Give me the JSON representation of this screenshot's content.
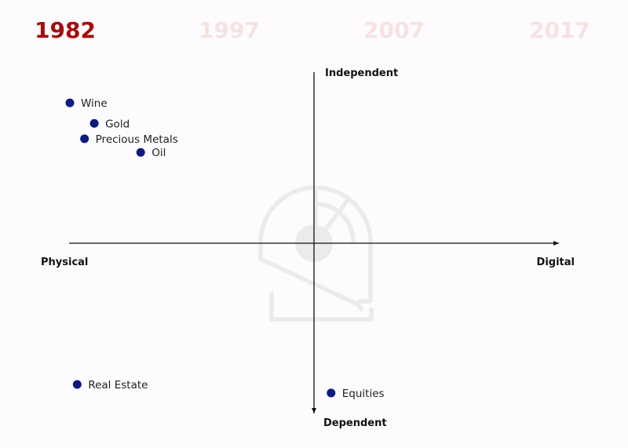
{
  "timeline": {
    "years": [
      "1982",
      "1997",
      "2007",
      "2017"
    ],
    "selected": "1982",
    "colors": {
      "active": "#a50d0d",
      "inactive": "#f6e2e2"
    }
  },
  "chart_data": {
    "type": "scatter",
    "title": "",
    "xaxis": {
      "negative_label": "Physical",
      "positive_label": "Digital",
      "range": [
        -100,
        100
      ]
    },
    "yaxis": {
      "positive_label": "Independent",
      "negative_label": "Dependent",
      "range": [
        -100,
        100
      ]
    },
    "grid": false,
    "point_color": "#0d1a80",
    "points": [
      {
        "label": "Wine",
        "x": -100,
        "y": 82
      },
      {
        "label": "Gold",
        "x": -90,
        "y": 70
      },
      {
        "label": "Precious Metals",
        "x": -94,
        "y": 61
      },
      {
        "label": "Oil",
        "x": -71,
        "y": 53
      },
      {
        "label": "Real Estate",
        "x": -97,
        "y": -83
      },
      {
        "label": "Equities",
        "x": 7,
        "y": -88
      }
    ]
  },
  "watermark": {
    "icon": "logo-watermark-icon",
    "color": "#ebebeb"
  }
}
